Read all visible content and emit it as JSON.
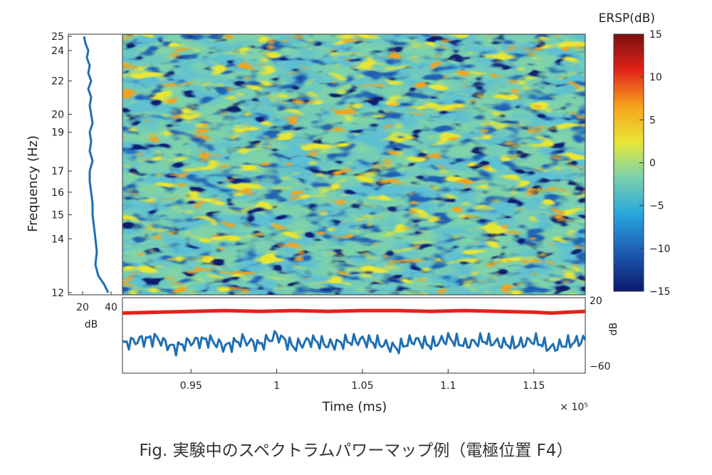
{
  "caption": "Fig. 実験中のスペクトラムパワーマップ例（電極位置 F4）",
  "chart_data": [
    {
      "type": "heatmap",
      "ylabel": "Frequency (Hz)",
      "y_ticks": [
        12,
        14,
        15,
        16,
        17,
        19,
        20,
        22,
        24,
        25
      ],
      "ylim": [
        12,
        25
      ],
      "xlim": [
        0.91,
        1.18
      ],
      "x_multiplier_label": "× 10⁵",
      "colorbar": {
        "title": "ERSP(dB)",
        "ticks": [
          "15",
          "10",
          "5",
          "0",
          "−5",
          "−10",
          "−15"
        ],
        "range": [
          -15,
          15
        ],
        "colors": [
          "#0a1a6e",
          "#1f5fb4",
          "#27a6de",
          "#7fd3a8",
          "#e8e636",
          "#f6a21c",
          "#e2231a",
          "#7a1010"
        ]
      }
    },
    {
      "type": "line",
      "xlabel": "dB",
      "x_ticks": [
        20,
        40
      ],
      "xlim": [
        10,
        48
      ],
      "series": [
        {
          "color": "#1f6fb3",
          "freq": [
            12,
            12.3,
            12.6,
            13,
            13.5,
            14,
            14.5,
            15,
            15.5,
            16,
            16.5,
            17,
            17.5,
            18,
            18.5,
            19,
            19.5,
            20,
            20.5,
            21,
            21.5,
            22,
            22.5,
            23,
            23.5,
            24,
            24.5,
            25
          ],
          "db": [
            38,
            35,
            31,
            29,
            30,
            29,
            28,
            27,
            27,
            26,
            25,
            25,
            27,
            25,
            26,
            25,
            27,
            26,
            25,
            26,
            24,
            26,
            24,
            25,
            23,
            24,
            22,
            21
          ]
        }
      ]
    },
    {
      "type": "line",
      "xlabel": "Time (ms)",
      "x_ticks": [
        "0.95",
        "1",
        "1.05",
        "1.1",
        "1.15"
      ],
      "x_tick_values": [
        0.95,
        1.0,
        1.05,
        1.1,
        1.15
      ],
      "xlim": [
        0.91,
        1.18
      ],
      "ylabel": "dB",
      "y_ticks": [
        "20",
        "−60"
      ],
      "ylim": [
        -60,
        20
      ],
      "series": [
        {
          "color": "#e2231a",
          "x": [
            0.91,
            0.93,
            0.95,
            0.97,
            0.99,
            1.01,
            1.03,
            1.05,
            1.07,
            1.09,
            1.11,
            1.13,
            1.15,
            1.16,
            1.17,
            1.18
          ],
          "y": [
            3,
            4,
            5,
            6,
            5,
            6,
            5,
            6,
            6,
            5,
            6,
            5,
            4,
            3,
            4,
            5
          ]
        },
        {
          "color": "#1f6fb3",
          "x": [
            0.91,
            0.92,
            0.93,
            0.94,
            0.95,
            0.96,
            0.97,
            0.98,
            0.99,
            1.0,
            1.01,
            1.02,
            1.03,
            1.04,
            1.05,
            1.06,
            1.07,
            1.08,
            1.09,
            1.1,
            1.11,
            1.12,
            1.13,
            1.14,
            1.15,
            1.16,
            1.17,
            1.18
          ],
          "y": [
            -35,
            -30,
            -28,
            -40,
            -32,
            -30,
            -38,
            -30,
            -36,
            -24,
            -38,
            -30,
            -36,
            -32,
            -30,
            -34,
            -40,
            -30,
            -36,
            -28,
            -36,
            -30,
            -34,
            -36,
            -30,
            -40,
            -34,
            -30
          ]
        }
      ]
    }
  ]
}
